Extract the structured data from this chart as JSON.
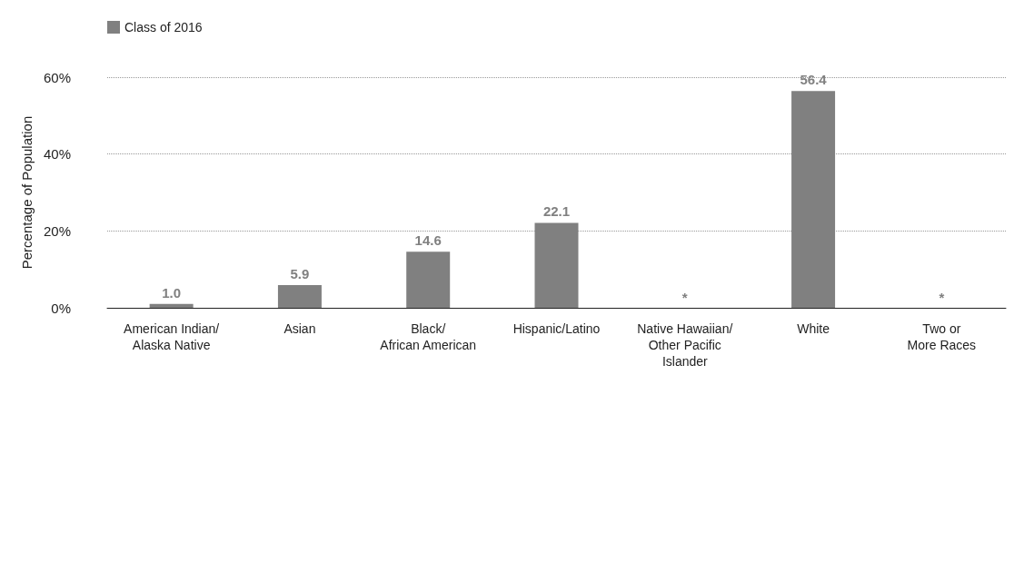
{
  "chart_data": {
    "type": "bar",
    "ylabel": "Percentage of Population",
    "categories": [
      "American Indian/\nAlaska Native",
      "Asian",
      "Black/\nAfrican American",
      "Hispanic/Latino",
      "Native Hawaiian/\nOther Pacific\nIslander",
      "White",
      "Two or\nMore Races"
    ],
    "series": [
      {
        "name": "Class of 2016",
        "color": "#808080",
        "values": [
          1.0,
          5.9,
          14.6,
          22.1,
          null,
          56.4,
          null
        ],
        "value_labels": [
          "1.0",
          "5.9",
          "14.6",
          "22.1",
          "*",
          "56.4",
          "*"
        ]
      }
    ],
    "ylim": [
      0,
      60
    ],
    "yticks": [
      {
        "value": 0,
        "label": "0%"
      },
      {
        "value": 20,
        "label": "20%"
      },
      {
        "value": 40,
        "label": "40%"
      },
      {
        "value": 60,
        "label": "60%"
      }
    ],
    "grid": "y",
    "legend": "top left"
  }
}
